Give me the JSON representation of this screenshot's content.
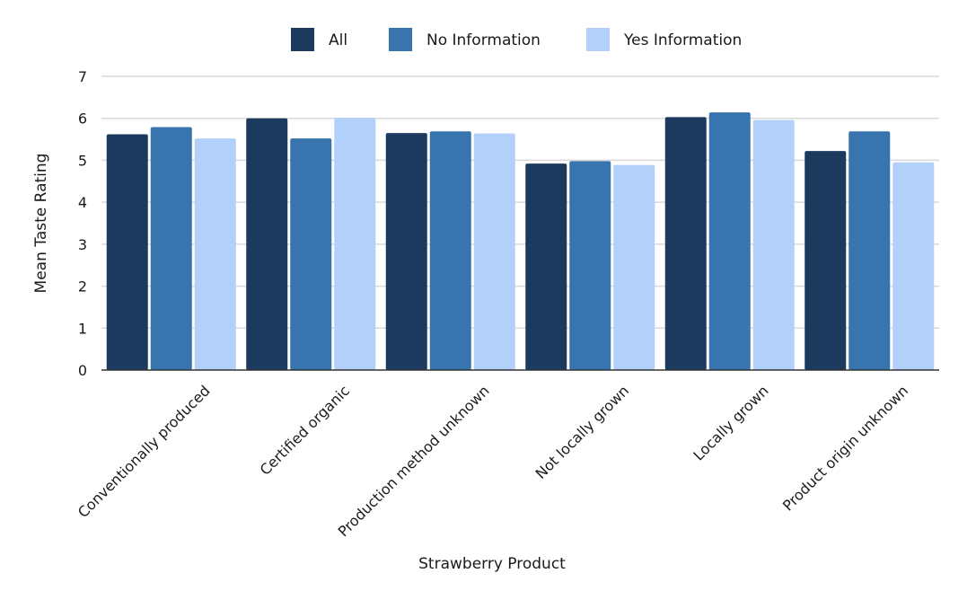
{
  "chart_data": {
    "type": "bar",
    "title": "",
    "xlabel": "Strawberry Product",
    "ylabel": "Mean Taste Rating",
    "ylim": [
      0,
      7
    ],
    "yticks": [
      0,
      1,
      2,
      3,
      4,
      5,
      6,
      7
    ],
    "grid": true,
    "legend_position": "top-center",
    "categories": [
      "Conventionally produced",
      "Certified organic",
      "Production method unknown",
      "Not locally grown",
      "Locally grown",
      "Product origin unknown"
    ],
    "series": [
      {
        "name": "All",
        "color": "#1b3a5e",
        "values": [
          5.62,
          6.0,
          5.65,
          4.92,
          6.03,
          5.22
        ]
      },
      {
        "name": "No Information",
        "color": "#3874ad",
        "values": [
          5.79,
          5.52,
          5.69,
          4.98,
          6.14,
          5.69
        ]
      },
      {
        "name": "Yes Information",
        "color": "#b3d0fb",
        "values": [
          5.52,
          6.01,
          5.64,
          4.89,
          5.96,
          4.95
        ]
      }
    ]
  }
}
